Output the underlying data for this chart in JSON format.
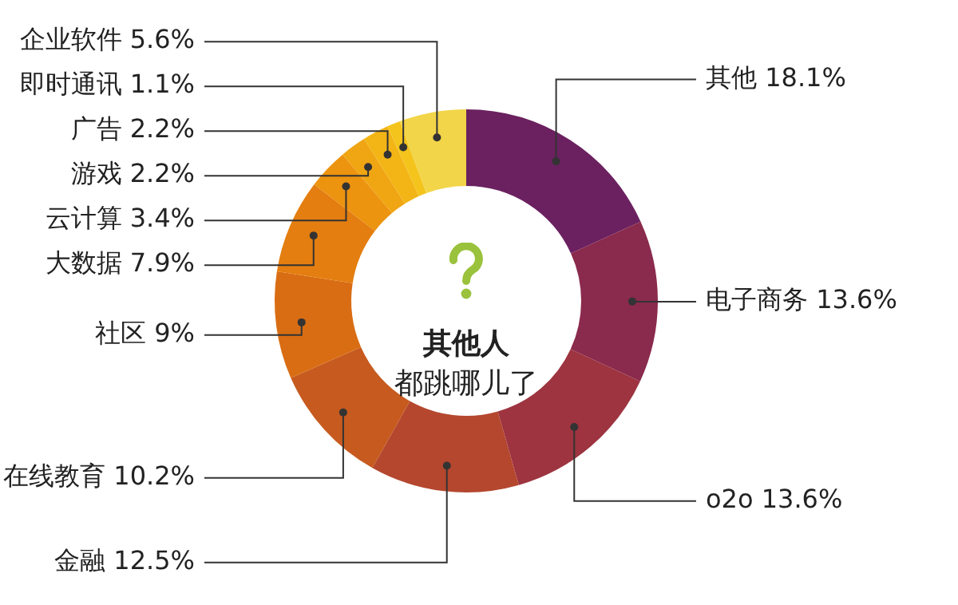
{
  "chart_data": {
    "type": "donut",
    "title": "其他人",
    "subtitle": "都跳哪儿了",
    "categories": [
      "其他",
      "电子商务",
      "o2o",
      "金融",
      "在线教育",
      "社区",
      "大数据",
      "云计算",
      "游戏",
      "广告",
      "即时通讯",
      "企业软件"
    ],
    "values": [
      18.1,
      13.6,
      13.6,
      12.5,
      10.2,
      9,
      7.9,
      3.4,
      2.2,
      2.2,
      1.1,
      5.6
    ],
    "value_labels": [
      "18.1%",
      "13.6%",
      "13.6%",
      "12.5%",
      "10.2%",
      "9%",
      "7.9%",
      "3.4%",
      "2.2%",
      "2.2%",
      "1.1%",
      "5.6%"
    ],
    "colors": [
      "#6b2160",
      "#8a2a4c",
      "#9d3440",
      "#b4472e",
      "#c75a1f",
      "#d96d13",
      "#e47e10",
      "#ec930f",
      "#f0a513",
      "#f3b516",
      "#f4c41c",
      "#f2d548"
    ]
  }
}
